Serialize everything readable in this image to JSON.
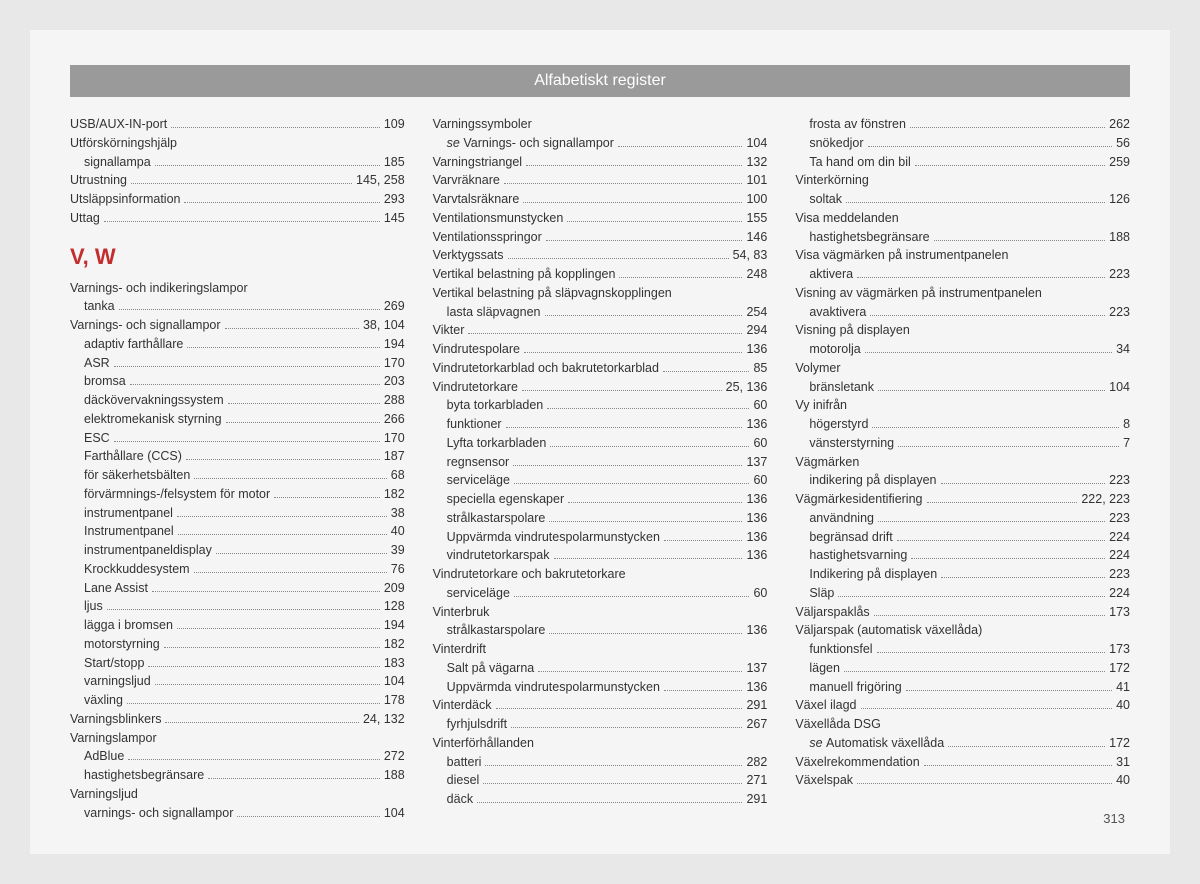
{
  "header": {
    "title": "Alfabetiskt register"
  },
  "page_number": "313",
  "section_heading": "V, W",
  "colors": {
    "page_bg": "#f5f5f5",
    "outer_bg": "#e8e8e8",
    "header_bg": "#9a9a9a",
    "heading_red": "#c22d2d",
    "text": "#333333"
  },
  "col1": [
    {
      "t": "entry",
      "label": "USB/AUX-IN-port",
      "page": "109"
    },
    {
      "t": "group",
      "label": "Utförskörningshjälp"
    },
    {
      "t": "sub",
      "label": "signallampa",
      "page": "185"
    },
    {
      "t": "entry",
      "label": "Utrustning",
      "page": "145, 258"
    },
    {
      "t": "entry",
      "label": "Utsläppsinformation",
      "page": "293"
    },
    {
      "t": "entry",
      "label": "Uttag",
      "page": "145"
    },
    {
      "t": "heading"
    },
    {
      "t": "group",
      "label": "Varnings- och indikeringslampor"
    },
    {
      "t": "sub",
      "label": "tanka",
      "page": "269"
    },
    {
      "t": "entry",
      "label": "Varnings- och signallampor",
      "page": "38, 104"
    },
    {
      "t": "sub",
      "label": "adaptiv farthållare",
      "page": "194"
    },
    {
      "t": "sub",
      "label": "ASR",
      "page": "170"
    },
    {
      "t": "sub",
      "label": "bromsa",
      "page": "203"
    },
    {
      "t": "sub",
      "label": "däckövervakningssystem",
      "page": "288"
    },
    {
      "t": "sub",
      "label": "elektromekanisk styrning",
      "page": "266"
    },
    {
      "t": "sub",
      "label": "ESC",
      "page": "170"
    },
    {
      "t": "sub",
      "label": "Farthållare (CCS)",
      "page": "187"
    },
    {
      "t": "sub",
      "label": "för säkerhetsbälten",
      "page": "68"
    },
    {
      "t": "sub",
      "label": "förvärmnings-/felsystem för motor",
      "page": "182"
    },
    {
      "t": "sub",
      "label": "instrumentpanel",
      "page": "38"
    },
    {
      "t": "sub",
      "label": "Instrumentpanel",
      "page": "40"
    },
    {
      "t": "sub",
      "label": "instrumentpaneldisplay",
      "page": "39"
    },
    {
      "t": "sub",
      "label": "Krockkuddesystem",
      "page": "76"
    },
    {
      "t": "sub",
      "label": "Lane Assist",
      "page": "209"
    },
    {
      "t": "sub",
      "label": "ljus",
      "page": "128"
    },
    {
      "t": "sub",
      "label": "lägga i bromsen",
      "page": "194"
    },
    {
      "t": "sub",
      "label": "motorstyrning",
      "page": "182"
    },
    {
      "t": "sub",
      "label": "Start/stopp",
      "page": "183"
    },
    {
      "t": "sub",
      "label": "varningsljud",
      "page": "104"
    },
    {
      "t": "sub",
      "label": "växling",
      "page": "178"
    },
    {
      "t": "entry",
      "label": "Varningsblinkers",
      "page": "24, 132"
    },
    {
      "t": "group",
      "label": "Varningslampor"
    },
    {
      "t": "sub",
      "label": "AdBlue",
      "page": "272"
    },
    {
      "t": "sub",
      "label": "hastighetsbegränsare",
      "page": "188"
    },
    {
      "t": "group",
      "label": "Varningsljud"
    },
    {
      "t": "sub",
      "label": "varnings- och signallampor",
      "page": "104"
    }
  ],
  "col2": [
    {
      "t": "group",
      "label": "Varningssymboler"
    },
    {
      "t": "subsee",
      "prefix": "se ",
      "label": "Varnings- och signallampor",
      "page": "104"
    },
    {
      "t": "entry",
      "label": "Varningstriangel",
      "page": "132"
    },
    {
      "t": "entry",
      "label": "Varvräknare",
      "page": "101"
    },
    {
      "t": "entry",
      "label": "Varvtalsräknare",
      "page": "100"
    },
    {
      "t": "entry",
      "label": "Ventilationsmunstycken",
      "page": "155"
    },
    {
      "t": "entry",
      "label": "Ventilationsspringor",
      "page": "146"
    },
    {
      "t": "entry",
      "label": "Verktygssats",
      "page": "54, 83"
    },
    {
      "t": "entry",
      "label": "Vertikal belastning på kopplingen",
      "page": "248"
    },
    {
      "t": "group",
      "label": "Vertikal belastning på släpvagnskopplingen"
    },
    {
      "t": "sub",
      "label": "lasta släpvagnen",
      "page": "254"
    },
    {
      "t": "entry",
      "label": "Vikter",
      "page": "294"
    },
    {
      "t": "entry",
      "label": "Vindrutespolare",
      "page": "136"
    },
    {
      "t": "entry",
      "label": "Vindrutetorkarblad och bakrutetorkarblad",
      "page": "85"
    },
    {
      "t": "entry",
      "label": "Vindrutetorkare",
      "page": "25, 136"
    },
    {
      "t": "sub",
      "label": "byta torkarbladen",
      "page": "60"
    },
    {
      "t": "sub",
      "label": "funktioner",
      "page": "136"
    },
    {
      "t": "sub",
      "label": "Lyfta torkarbladen",
      "page": "60"
    },
    {
      "t": "sub",
      "label": "regnsensor",
      "page": "137"
    },
    {
      "t": "sub",
      "label": "serviceläge",
      "page": "60"
    },
    {
      "t": "sub",
      "label": "speciella egenskaper",
      "page": "136"
    },
    {
      "t": "sub",
      "label": "strålkastarspolare",
      "page": "136"
    },
    {
      "t": "sub",
      "label": "Uppvärmda vindrutespolarmunstycken",
      "page": "136"
    },
    {
      "t": "sub",
      "label": "vindrutetorkarspak",
      "page": "136"
    },
    {
      "t": "group",
      "label": "Vindrutetorkare och bakrutetorkare"
    },
    {
      "t": "sub",
      "label": "serviceläge",
      "page": "60"
    },
    {
      "t": "group",
      "label": "Vinterbruk"
    },
    {
      "t": "sub",
      "label": "strålkastarspolare",
      "page": "136"
    },
    {
      "t": "group",
      "label": "Vinterdrift"
    },
    {
      "t": "sub",
      "label": "Salt på vägarna",
      "page": "137"
    },
    {
      "t": "sub",
      "label": "Uppvärmda vindrutespolarmunstycken",
      "page": "136"
    },
    {
      "t": "entry",
      "label": "Vinterdäck",
      "page": "291"
    },
    {
      "t": "sub",
      "label": "fyrhjulsdrift",
      "page": "267"
    },
    {
      "t": "group",
      "label": "Vinterförhållanden"
    },
    {
      "t": "sub",
      "label": "batteri",
      "page": "282"
    },
    {
      "t": "sub",
      "label": "diesel",
      "page": "271"
    },
    {
      "t": "sub",
      "label": "däck",
      "page": "291"
    }
  ],
  "col3": [
    {
      "t": "sub",
      "label": "frosta av fönstren",
      "page": "262"
    },
    {
      "t": "sub",
      "label": "snökedjor",
      "page": "56"
    },
    {
      "t": "sub",
      "label": "Ta hand om din bil",
      "page": "259"
    },
    {
      "t": "group",
      "label": "Vinterkörning"
    },
    {
      "t": "sub",
      "label": "soltak",
      "page": "126"
    },
    {
      "t": "group",
      "label": "Visa meddelanden"
    },
    {
      "t": "sub",
      "label": "hastighetsbegränsare",
      "page": "188"
    },
    {
      "t": "group",
      "label": "Visa vägmärken på instrumentpanelen"
    },
    {
      "t": "sub",
      "label": "aktivera",
      "page": "223"
    },
    {
      "t": "group",
      "label": "Visning av vägmärken på instrumentpanelen"
    },
    {
      "t": "sub",
      "label": "avaktivera",
      "page": "223"
    },
    {
      "t": "group",
      "label": "Visning på displayen"
    },
    {
      "t": "sub",
      "label": "motorolja",
      "page": "34"
    },
    {
      "t": "group",
      "label": "Volymer"
    },
    {
      "t": "sub",
      "label": "bränsletank",
      "page": "104"
    },
    {
      "t": "group",
      "label": "Vy inifrån"
    },
    {
      "t": "sub",
      "label": "högerstyrd",
      "page": "8"
    },
    {
      "t": "sub",
      "label": "vänsterstyrning",
      "page": "7"
    },
    {
      "t": "group",
      "label": "Vägmärken"
    },
    {
      "t": "sub",
      "label": "indikering på displayen",
      "page": "223"
    },
    {
      "t": "entry",
      "label": "Vägmärkesidentifiering",
      "page": "222, 223"
    },
    {
      "t": "sub",
      "label": "användning",
      "page": "223"
    },
    {
      "t": "sub",
      "label": "begränsad drift",
      "page": "224"
    },
    {
      "t": "sub",
      "label": "hastighetsvarning",
      "page": "224"
    },
    {
      "t": "sub",
      "label": "Indikering på displayen",
      "page": "223"
    },
    {
      "t": "sub",
      "label": "Släp",
      "page": "224"
    },
    {
      "t": "entry",
      "label": "Väljarspaklås",
      "page": "173"
    },
    {
      "t": "group",
      "label": "Väljarspak (automatisk växellåda)"
    },
    {
      "t": "sub",
      "label": "funktionsfel",
      "page": "173"
    },
    {
      "t": "sub",
      "label": "lägen",
      "page": "172"
    },
    {
      "t": "sub",
      "label": "manuell frigöring",
      "page": "41"
    },
    {
      "t": "entry",
      "label": "Växel ilagd",
      "page": "40"
    },
    {
      "t": "group",
      "label": "Växellåda DSG"
    },
    {
      "t": "subsee",
      "prefix": "se ",
      "label": "Automatisk växellåda",
      "page": "172"
    },
    {
      "t": "entry",
      "label": "Växelrekommendation",
      "page": "31"
    },
    {
      "t": "entry",
      "label": "Växelspak",
      "page": "40"
    }
  ]
}
